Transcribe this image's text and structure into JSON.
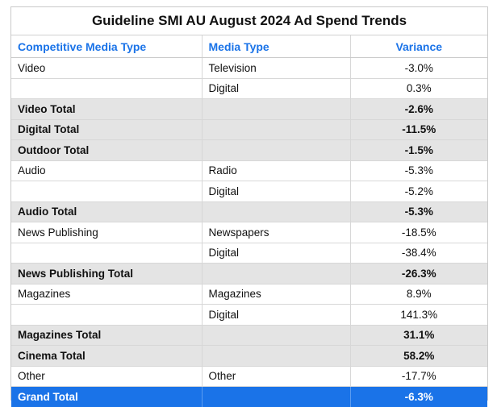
{
  "title": "Guideline SMI AU August 2024 Ad Spend Trends",
  "headers": {
    "competitive_media_type": "Competitive Media Type",
    "media_type": "Media Type",
    "variance": "Variance"
  },
  "rows": [
    {
      "c1": "Video",
      "c2": "Television",
      "v": "-3.0%"
    },
    {
      "c1": "",
      "c2": "Digital",
      "v": "0.3%"
    },
    {
      "c1": "Video Total",
      "c2": "",
      "v": "-2.6%"
    },
    {
      "c1": "Digital Total",
      "c2": "",
      "v": "-11.5%"
    },
    {
      "c1": "Outdoor Total",
      "c2": "",
      "v": "-1.5%"
    },
    {
      "c1": "Audio",
      "c2": "Radio",
      "v": "-5.3%"
    },
    {
      "c1": "",
      "c2": "Digital",
      "v": "-5.2%"
    },
    {
      "c1": "Audio Total",
      "c2": "",
      "v": "-5.3%"
    },
    {
      "c1": "News Publishing",
      "c2": "Newspapers",
      "v": "-18.5%"
    },
    {
      "c1": "",
      "c2": "Digital",
      "v": "-38.4%"
    },
    {
      "c1": "News Publishing Total",
      "c2": "",
      "v": "-26.3%"
    },
    {
      "c1": "Magazines",
      "c2": "Magazines",
      "v": "8.9%"
    },
    {
      "c1": "",
      "c2": "Digital",
      "v": "141.3%"
    },
    {
      "c1": "Magazines Total",
      "c2": "",
      "v": "31.1%"
    },
    {
      "c1": "Cinema Total",
      "c2": "",
      "v": "58.2%"
    },
    {
      "c1": "Other",
      "c2": "Other",
      "v": "-17.7%"
    }
  ],
  "grand_total": {
    "label": "Grand Total",
    "v": "-6.3%"
  },
  "colors": {
    "accent": "#1a73e8",
    "total_row_bg": "#e4e4e4",
    "header_text": "#1a73e8"
  }
}
